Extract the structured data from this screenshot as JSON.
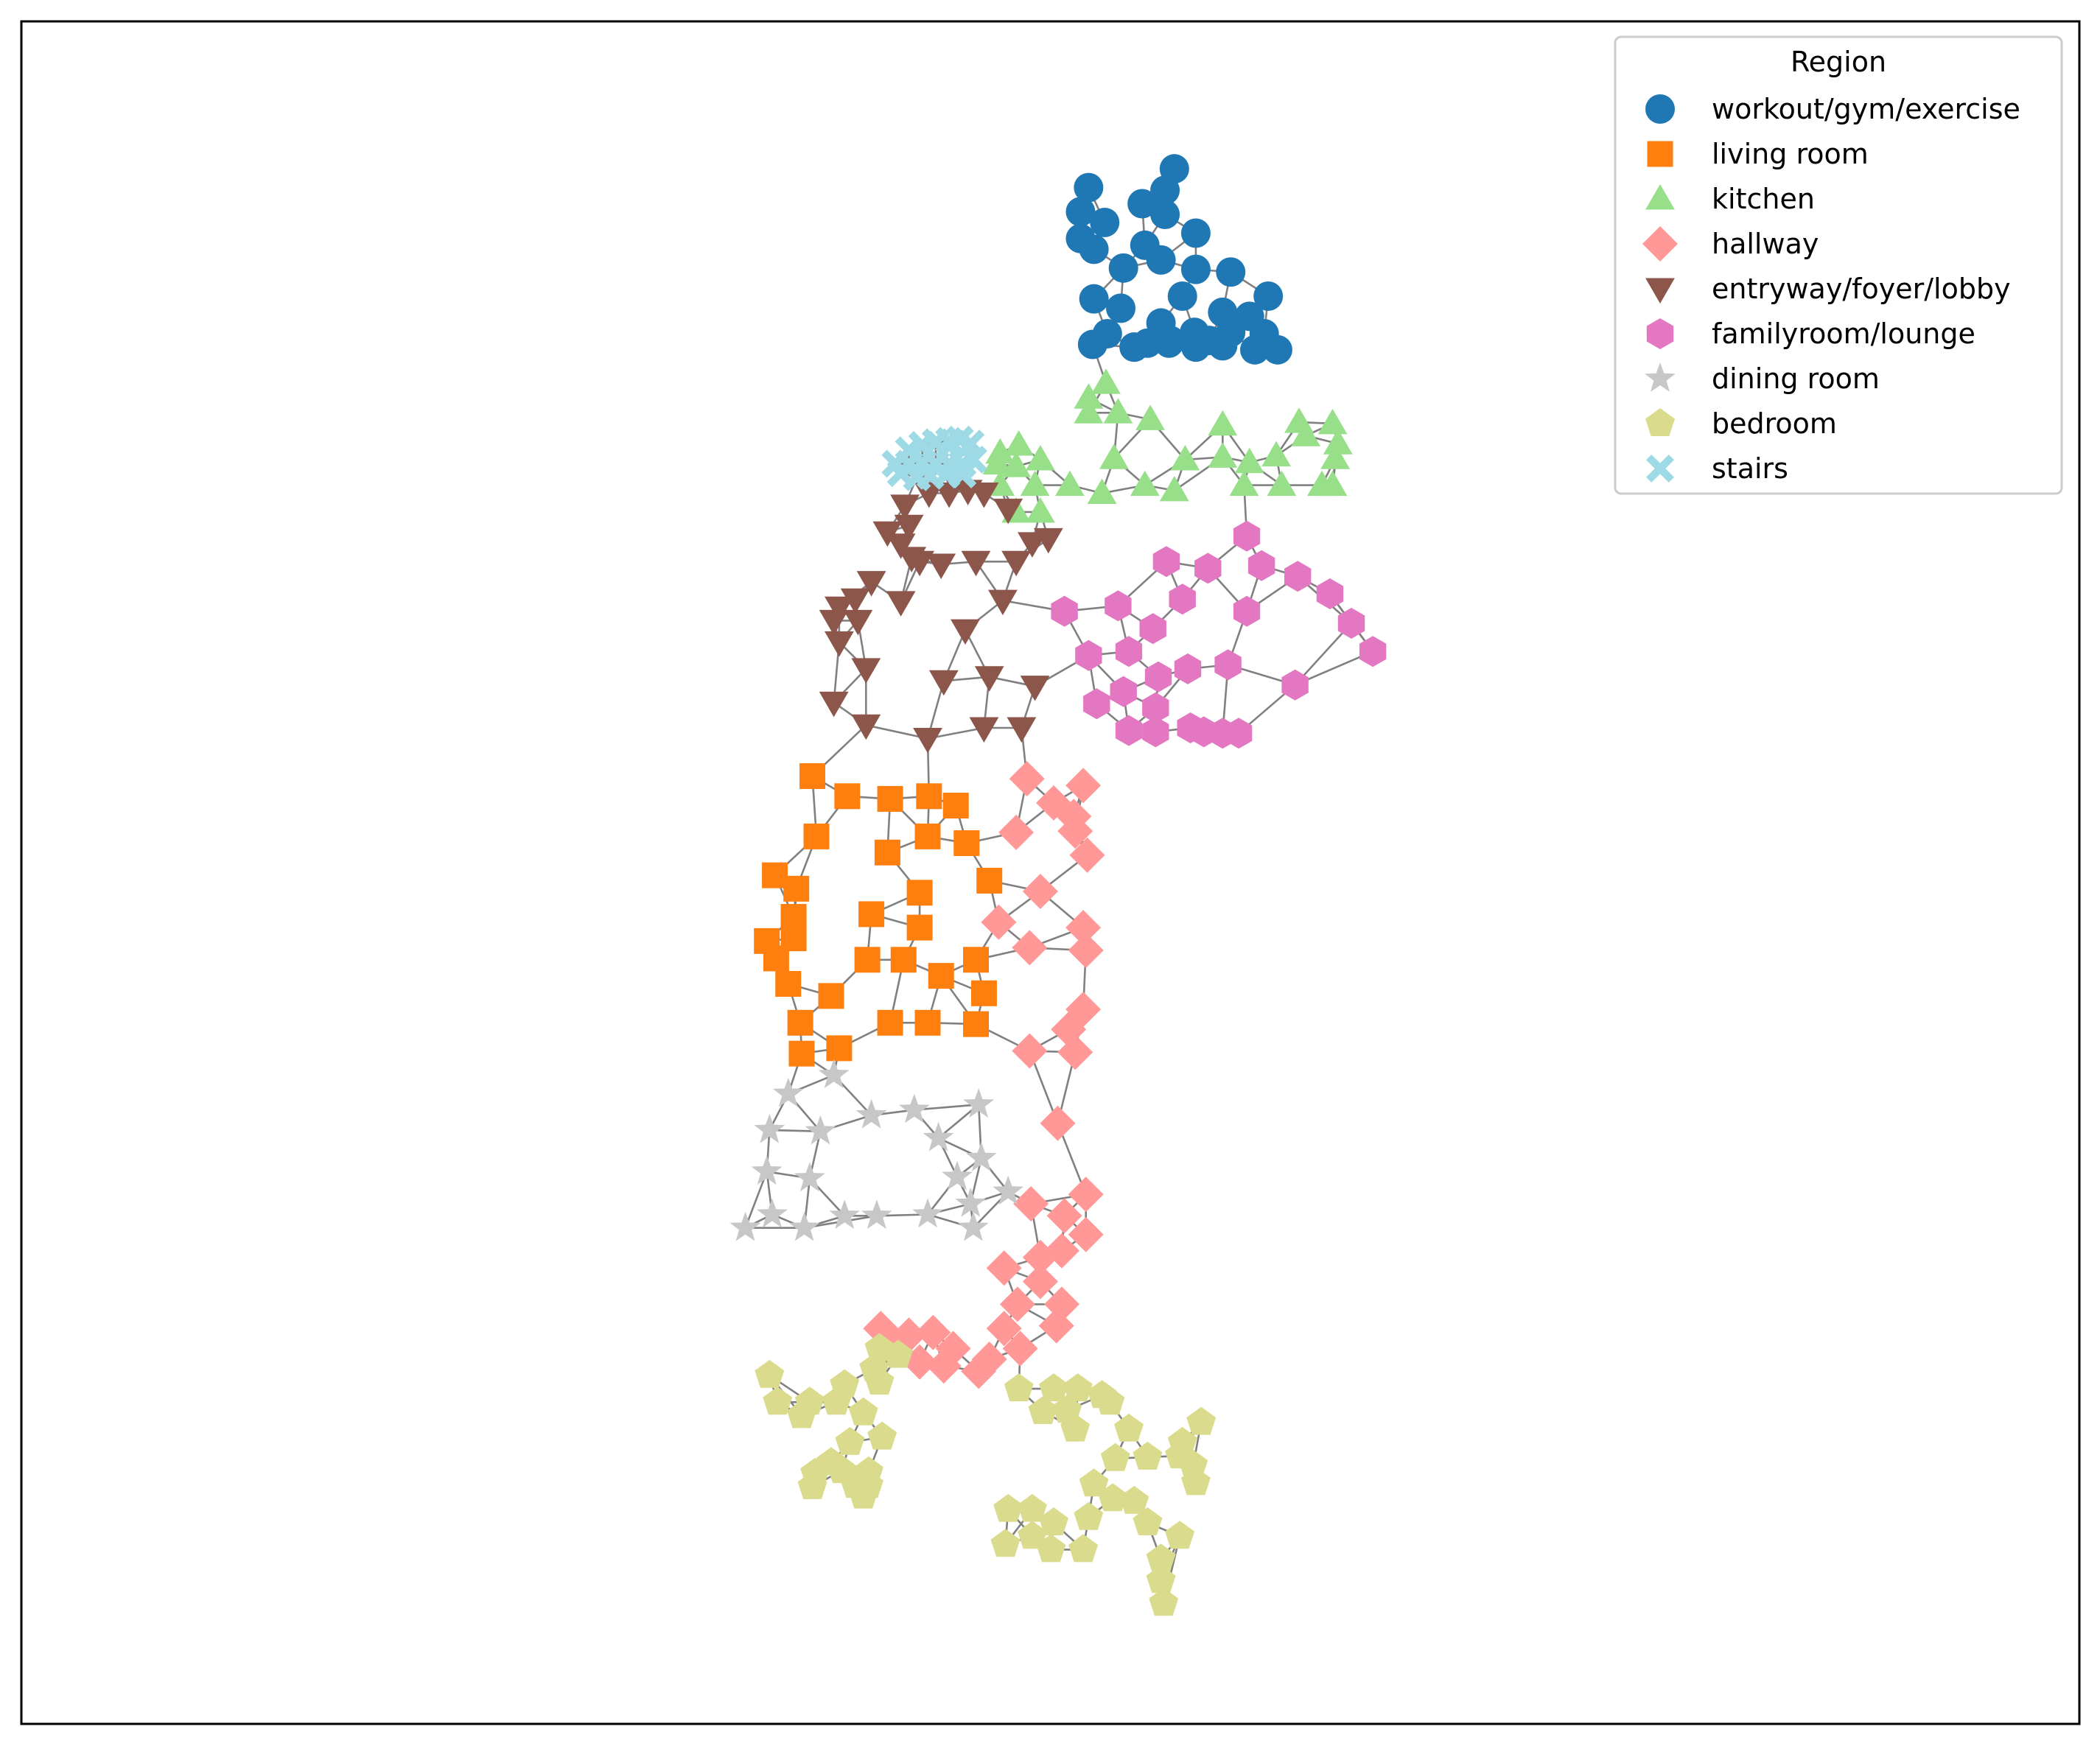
{
  "chart_data": {
    "type": "scatter",
    "subtype": "graph",
    "title": "",
    "xlabel": "",
    "ylabel": "",
    "grid": false,
    "axes_ticks": false,
    "xlim": [
      0,
      1535
    ],
    "ylim": [
      1270,
      0
    ],
    "edge_color": "#808080",
    "legend": {
      "title": "Region",
      "placement": "top-right",
      "entries": [
        {
          "key": "workout",
          "label": "workout/gym/exercise",
          "marker": "circle",
          "color": "#1f77b4"
        },
        {
          "key": "living",
          "label": "living room",
          "marker": "square",
          "color": "#ff7f0e"
        },
        {
          "key": "kitchen",
          "label": "kitchen",
          "marker": "triangle-up",
          "color": "#98df8a"
        },
        {
          "key": "hallway",
          "label": "hallway",
          "marker": "diamond",
          "color": "#ff9896"
        },
        {
          "key": "entryway",
          "label": "entryway/foyer/lobby",
          "marker": "triangle-down",
          "color": "#8c564b"
        },
        {
          "key": "family",
          "label": "familyroom/lounge",
          "marker": "hexagon",
          "color": "#e377c2"
        },
        {
          "key": "dining",
          "label": "dining room",
          "marker": "star",
          "color": "#c7c7c7"
        },
        {
          "key": "bedroom",
          "label": "bedroom",
          "marker": "pentagon",
          "color": "#dbdb8d"
        },
        {
          "key": "stairs",
          "label": "stairs",
          "marker": "x",
          "color": "#9edae5"
        }
      ]
    },
    "series": [
      {
        "key": "workout",
        "name": "workout/gym/exercise",
        "points": [
          [
            860,
            110
          ],
          [
            796,
            124
          ],
          [
            853,
            126
          ],
          [
            836,
            136
          ],
          [
            790,
            142
          ],
          [
            853,
            144
          ],
          [
            808,
            150
          ],
          [
            876,
            158
          ],
          [
            790,
            162
          ],
          [
            838,
            167
          ],
          [
            800,
            170
          ],
          [
            850,
            178
          ],
          [
            822,
            184
          ],
          [
            876,
            185
          ],
          [
            902,
            187
          ],
          [
            800,
            207
          ],
          [
            866,
            205
          ],
          [
            820,
            214
          ],
          [
            896,
            217
          ],
          [
            930,
            205
          ],
          [
            916,
            220
          ],
          [
            850,
            225
          ],
          [
            875,
            232
          ],
          [
            902,
            232
          ],
          [
            927,
            233
          ],
          [
            810,
            233
          ],
          [
            840,
            240
          ],
          [
            830,
            243
          ],
          [
            857,
            238
          ],
          [
            886,
            238
          ],
          [
            799,
            241
          ],
          [
            830,
            243
          ],
          [
            856,
            240
          ],
          [
            876,
            243
          ],
          [
            896,
            242
          ],
          [
            920,
            245
          ],
          [
            937,
            245
          ]
        ]
      },
      {
        "key": "living",
        "name": "living room",
        "points": [
          [
            590,
            563
          ],
          [
            616,
            578
          ],
          [
            648,
            580
          ],
          [
            677,
            578
          ],
          [
            697,
            585
          ],
          [
            593,
            608
          ],
          [
            646,
            620
          ],
          [
            676,
            608
          ],
          [
            705,
            613
          ],
          [
            562,
            637
          ],
          [
            578,
            647
          ],
          [
            576,
            668
          ],
          [
            722,
            641
          ],
          [
            670,
            650
          ],
          [
            634,
            666
          ],
          [
            670,
            676
          ],
          [
            556,
            686
          ],
          [
            576,
            684
          ],
          [
            563,
            699
          ],
          [
            572,
            718
          ],
          [
            631,
            700
          ],
          [
            658,
            700
          ],
          [
            712,
            700
          ],
          [
            604,
            727
          ],
          [
            686,
            712
          ],
          [
            718,
            725
          ],
          [
            581,
            747
          ],
          [
            648,
            747
          ],
          [
            676,
            747
          ],
          [
            712,
            748
          ],
          [
            582,
            770
          ],
          [
            610,
            766
          ]
        ]
      },
      {
        "key": "kitchen",
        "name": "kitchen",
        "points": [
          [
            809,
            270
          ],
          [
            796,
            281
          ],
          [
            796,
            292
          ],
          [
            818,
            292
          ],
          [
            842,
            297
          ],
          [
            896,
            301
          ],
          [
            953,
            299
          ],
          [
            978,
            300
          ],
          [
            744,
            316
          ],
          [
            730,
            322
          ],
          [
            958,
            309
          ],
          [
            982,
            315
          ],
          [
            980,
            326
          ],
          [
            815,
            326
          ],
          [
            868,
            327
          ],
          [
            896,
            325
          ],
          [
            916,
            329
          ],
          [
            936,
            324
          ],
          [
            728,
            330
          ],
          [
            742,
            332
          ],
          [
            760,
            327
          ],
          [
            730,
            346
          ],
          [
            756,
            346
          ],
          [
            782,
            346
          ],
          [
            806,
            352
          ],
          [
            838,
            346
          ],
          [
            860,
            350
          ],
          [
            912,
            346
          ],
          [
            940,
            346
          ],
          [
            970,
            346
          ],
          [
            978,
            346
          ],
          [
            742,
            366
          ],
          [
            760,
            366
          ]
        ]
      },
      {
        "key": "hallway",
        "name": "hallway",
        "points": [
          [
            750,
            565
          ],
          [
            792,
            570
          ],
          [
            770,
            583
          ],
          [
            785,
            593
          ],
          [
            742,
            605
          ],
          [
            786,
            604
          ],
          [
            795,
            622
          ],
          [
            760,
            649
          ],
          [
            729,
            672
          ],
          [
            792,
            676
          ],
          [
            752,
            691
          ],
          [
            794,
            693
          ],
          [
            792,
            737
          ],
          [
            781,
            752
          ],
          [
            752,
            768
          ],
          [
            786,
            769
          ],
          [
            773,
            822
          ],
          [
            794,
            875
          ],
          [
            753,
            882
          ],
          [
            778,
            891
          ],
          [
            794,
            905
          ],
          [
            760,
            922
          ],
          [
            733,
            930
          ],
          [
            776,
            917
          ],
          [
            760,
            940
          ],
          [
            743,
            957
          ],
          [
            776,
            957
          ],
          [
            772,
            973
          ],
          [
            733,
            975
          ],
          [
            745,
            990
          ],
          [
            641,
            975
          ],
          [
            662,
            980
          ],
          [
            680,
            978
          ],
          [
            652,
            990
          ],
          [
            695,
            990
          ],
          [
            670,
            1000
          ],
          [
            688,
            1003
          ],
          [
            714,
            1007
          ],
          [
            722,
            998
          ]
        ]
      },
      {
        "key": "entryway",
        "name": "entryway/foyer/lobby",
        "points": [
          [
            659,
            361
          ],
          [
            677,
            352
          ],
          [
            692,
            352
          ],
          [
            706,
            350
          ],
          [
            718,
            352
          ],
          [
            736,
            364
          ],
          [
            662,
            376
          ],
          [
            646,
            381
          ],
          [
            656,
            390
          ],
          [
            664,
            400
          ],
          [
            670,
            403
          ],
          [
            634,
            418
          ],
          [
            686,
            405
          ],
          [
            712,
            403
          ],
          [
            754,
            389
          ],
          [
            742,
            403
          ],
          [
            766,
            386
          ],
          [
            610,
            437
          ],
          [
            622,
            431
          ],
          [
            606,
            447
          ],
          [
            624,
            447
          ],
          [
            656,
            433
          ],
          [
            704,
            454
          ],
          [
            732,
            432
          ],
          [
            610,
            463
          ],
          [
            630,
            483
          ],
          [
            688,
            492
          ],
          [
            722,
            489
          ],
          [
            756,
            496
          ],
          [
            606,
            508
          ],
          [
            630,
            525
          ],
          [
            676,
            535
          ],
          [
            718,
            527
          ],
          [
            746,
            527
          ]
        ]
      },
      {
        "key": "family",
        "name": "familyroom/lounge",
        "points": [
          [
            914,
            384
          ],
          [
            854,
            403
          ],
          [
            885,
            408
          ],
          [
            925,
            406
          ],
          [
            952,
            414
          ],
          [
            976,
            427
          ],
          [
            778,
            440
          ],
          [
            818,
            436
          ],
          [
            866,
            431
          ],
          [
            914,
            440
          ],
          [
            992,
            449
          ],
          [
            1008,
            470
          ],
          [
            844,
            453
          ],
          [
            826,
            470
          ],
          [
            796,
            473
          ],
          [
            848,
            489
          ],
          [
            870,
            483
          ],
          [
            900,
            480
          ],
          [
            822,
            500
          ],
          [
            950,
            495
          ],
          [
            802,
            509
          ],
          [
            846,
            512
          ],
          [
            826,
            529
          ],
          [
            846,
            530
          ],
          [
            872,
            527
          ],
          [
            882,
            530
          ],
          [
            896,
            531
          ],
          [
            908,
            531
          ]
        ]
      },
      {
        "key": "dining",
        "name": "dining room",
        "points": [
          [
            606,
            786
          ],
          [
            572,
            800
          ],
          [
            596,
            828
          ],
          [
            634,
            816
          ],
          [
            666,
            812
          ],
          [
            714,
            808
          ],
          [
            684,
            833
          ],
          [
            558,
            827
          ],
          [
            716,
            848
          ],
          [
            556,
            858
          ],
          [
            588,
            863
          ],
          [
            698,
            862
          ],
          [
            708,
            882
          ],
          [
            736,
            873
          ],
          [
            540,
            900
          ],
          [
            560,
            890
          ],
          [
            584,
            900
          ],
          [
            614,
            891
          ],
          [
            638,
            891
          ],
          [
            676,
            890
          ],
          [
            710,
            900
          ]
        ]
      },
      {
        "key": "bedroom",
        "name": "bedroom",
        "points": [
          [
            640,
            990
          ],
          [
            654,
            995
          ],
          [
            636,
            1005
          ],
          [
            640,
            1015
          ],
          [
            558,
            1010
          ],
          [
            614,
            1017
          ],
          [
            564,
            1030
          ],
          [
            588,
            1030
          ],
          [
            608,
            1030
          ],
          [
            628,
            1038
          ],
          [
            744,
            1020
          ],
          [
            770,
            1020
          ],
          [
            788,
            1020
          ],
          [
            806,
            1025
          ],
          [
            812,
            1030
          ],
          [
            582,
            1040
          ],
          [
            762,
            1037
          ],
          [
            780,
            1036
          ],
          [
            618,
            1060
          ],
          [
            642,
            1056
          ],
          [
            786,
            1050
          ],
          [
            826,
            1050
          ],
          [
            880,
            1045
          ],
          [
            866,
            1060
          ],
          [
            592,
            1083
          ],
          [
            612,
            1081
          ],
          [
            632,
            1082
          ],
          [
            632,
            1092
          ],
          [
            604,
            1075
          ],
          [
            816,
            1072
          ],
          [
            840,
            1071
          ],
          [
            864,
            1070
          ],
          [
            874,
            1077
          ],
          [
            590,
            1093
          ],
          [
            622,
            1092
          ],
          [
            628,
            1100
          ],
          [
            800,
            1091
          ],
          [
            814,
            1102
          ],
          [
            876,
            1090
          ],
          [
            830,
            1104
          ],
          [
            736,
            1110
          ],
          [
            754,
            1110
          ],
          [
            770,
            1120
          ],
          [
            796,
            1116
          ],
          [
            840,
            1120
          ],
          [
            864,
            1130
          ],
          [
            734,
            1136
          ],
          [
            754,
            1130
          ],
          [
            768,
            1140
          ],
          [
            792,
            1140
          ],
          [
            850,
            1147
          ],
          [
            850,
            1163
          ],
          [
            852,
            1180
          ]
        ]
      },
      {
        "key": "stairs",
        "name": "stairs",
        "points": [
          [
            662,
            320
          ],
          [
            672,
            316
          ],
          [
            682,
            314
          ],
          [
            692,
            313
          ],
          [
            700,
            312
          ],
          [
            708,
            315
          ],
          [
            652,
            330
          ],
          [
            662,
            330
          ],
          [
            672,
            329
          ],
          [
            682,
            330
          ],
          [
            692,
            330
          ],
          [
            702,
            330
          ],
          [
            710,
            327
          ],
          [
            656,
            337
          ],
          [
            668,
            340
          ],
          [
            678,
            339
          ],
          [
            690,
            338
          ],
          [
            702,
            338
          ]
        ]
      }
    ]
  }
}
